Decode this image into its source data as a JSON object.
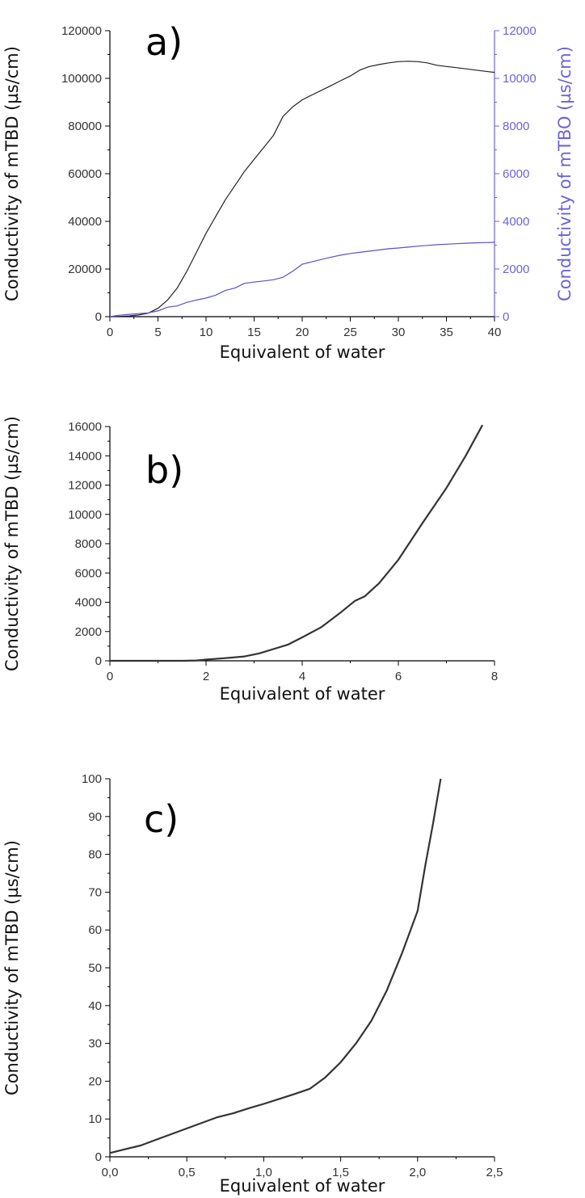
{
  "chart_data": [
    {
      "type": "line",
      "panel_label": "a)",
      "xlabel": "Equivalent of water",
      "ylabel": "Conductivity of mTBD (µs/cm)",
      "y2label": "Conductivity of mTBO (µs/cm)",
      "xlim": [
        0,
        40
      ],
      "ylim": [
        0,
        120000
      ],
      "y2lim": [
        0,
        12000
      ],
      "xticks": [
        "0",
        "5",
        "10",
        "15",
        "20",
        "25",
        "30",
        "35",
        "40"
      ],
      "yticks": [
        "0",
        "20000",
        "40000",
        "60000",
        "80000",
        "100000",
        "120000"
      ],
      "y2ticks": [
        "0",
        "2000",
        "4000",
        "6000",
        "8000",
        "10000",
        "12000"
      ],
      "grid": false,
      "colors": {
        "series1": "#222222",
        "series2": "#5a50d0",
        "right_axis": "#6b63d9"
      },
      "series": [
        {
          "axis": "left",
          "x": [
            0,
            1,
            2,
            3,
            4,
            5,
            6,
            7,
            8,
            9,
            10,
            11,
            12,
            13,
            14,
            15,
            16,
            17,
            18,
            19,
            20,
            21,
            22,
            23,
            24,
            25,
            26,
            27,
            28,
            29,
            30,
            31,
            32,
            33,
            34,
            35,
            36,
            37,
            38,
            39,
            40
          ],
          "values": [
            0,
            100,
            300,
            700,
            1500,
            3500,
            7000,
            12000,
            19000,
            27000,
            35000,
            42000,
            49000,
            55000,
            61000,
            66000,
            71000,
            76000,
            84000,
            88000,
            91000,
            93000,
            95000,
            97000,
            99000,
            101000,
            103500,
            105000,
            105800,
            106500,
            107000,
            107200,
            107000,
            106500,
            105500,
            105000,
            104500,
            104000,
            103500,
            103000,
            102500
          ]
        },
        {
          "axis": "right",
          "x": [
            0,
            1,
            2,
            3,
            4,
            5,
            6,
            7,
            8,
            9,
            10,
            11,
            12,
            13,
            14,
            15,
            16,
            17,
            18,
            19,
            20,
            21,
            22,
            23,
            24,
            25,
            26,
            27,
            28,
            29,
            30,
            31,
            32,
            33,
            34,
            35,
            36,
            37,
            38,
            39,
            40
          ],
          "values": [
            0,
            60,
            100,
            130,
            160,
            240,
            400,
            450,
            600,
            700,
            780,
            900,
            1100,
            1200,
            1400,
            1450,
            1500,
            1550,
            1650,
            1900,
            2200,
            2300,
            2400,
            2500,
            2580,
            2650,
            2700,
            2750,
            2800,
            2850,
            2880,
            2920,
            2960,
            2990,
            3020,
            3040,
            3060,
            3080,
            3100,
            3110,
            3120
          ]
        }
      ]
    },
    {
      "type": "line",
      "panel_label": "b)",
      "xlabel": "Equivalent of water",
      "ylabel": "Conductivity of mTBD (µs/cm)",
      "xlim": [
        0,
        8
      ],
      "ylim": [
        0,
        16000
      ],
      "xticks": [
        "0",
        "2",
        "4",
        "6",
        "8"
      ],
      "yticks": [
        "0",
        "2000",
        "4000",
        "6000",
        "8000",
        "10000",
        "12000",
        "14000",
        "16000"
      ],
      "grid": false,
      "colors": {
        "series1": "#333333"
      },
      "series": [
        {
          "x": [
            0,
            0.5,
            1,
            1.5,
            1.8,
            2,
            2.4,
            2.8,
            3.1,
            3.4,
            3.7,
            4,
            4.4,
            4.8,
            5.1,
            5.3,
            5.6,
            6,
            6.5,
            7,
            7.4,
            7.75
          ],
          "values": [
            0,
            0,
            0,
            0,
            20,
            80,
            180,
            300,
            500,
            800,
            1100,
            1600,
            2300,
            3300,
            4100,
            4400,
            5300,
            6900,
            9400,
            11800,
            14000,
            16100
          ]
        }
      ]
    },
    {
      "type": "line",
      "panel_label": "c)",
      "xlabel": "Equivalent of water",
      "ylabel": "Conductivity of mTBD (µs/cm)",
      "xlim": [
        0,
        2.5
      ],
      "ylim": [
        0,
        100
      ],
      "xticks": [
        "0,0",
        "0,5",
        "1,0",
        "1,5",
        "2,0",
        "2,5"
      ],
      "yticks": [
        "0",
        "10",
        "20",
        "30",
        "40",
        "50",
        "60",
        "70",
        "80",
        "90",
        "100"
      ],
      "grid": false,
      "colors": {
        "series1": "#333333"
      },
      "series": [
        {
          "x": [
            0,
            0.1,
            0.2,
            0.3,
            0.4,
            0.5,
            0.6,
            0.7,
            0.8,
            0.9,
            1.0,
            1.1,
            1.2,
            1.3,
            1.4,
            1.5,
            1.6,
            1.7,
            1.8,
            1.9,
            2.0,
            2.05,
            2.1,
            2.15
          ],
          "values": [
            1,
            2,
            3,
            4.5,
            6,
            7.5,
            9,
            10.5,
            11.5,
            12.8,
            14,
            15.3,
            16.6,
            18,
            21,
            25,
            30,
            36,
            44,
            54,
            65,
            77,
            88,
            100
          ]
        }
      ]
    }
  ]
}
